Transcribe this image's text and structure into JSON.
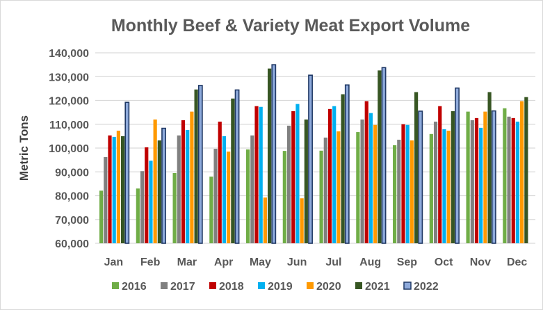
{
  "chart_data": {
    "type": "bar",
    "title": "Monthly Beef & Variety Meat Export Volume",
    "xlabel": "",
    "ylabel": "Metric Tons",
    "ylim": [
      60000,
      140000
    ],
    "yticks": [
      "60,000",
      "70,000",
      "80,000",
      "90,000",
      "100,000",
      "110,000",
      "120,000",
      "130,000",
      "140,000"
    ],
    "grid": true,
    "legend_position": "bottom",
    "categories": [
      "Jan",
      "Feb",
      "Mar",
      "Apr",
      "May",
      "Jun",
      "Jul",
      "Aug",
      "Sep",
      "Oct",
      "Nov",
      "Dec"
    ],
    "series": [
      {
        "name": "2016",
        "color": "#70ad47",
        "values": [
          82100,
          83000,
          89500,
          88000,
          99400,
          98800,
          98900,
          106700,
          101200,
          105900,
          115300,
          116700
        ]
      },
      {
        "name": "2017",
        "color": "#808080",
        "values": [
          96200,
          90300,
          105300,
          99700,
          105300,
          109400,
          104400,
          112000,
          103500,
          111100,
          111700,
          113200
        ]
      },
      {
        "name": "2018",
        "color": "#c00000",
        "values": [
          105300,
          100300,
          111700,
          111100,
          117600,
          115500,
          116400,
          119700,
          110000,
          117600,
          112600,
          112600
        ]
      },
      {
        "name": "2019",
        "color": "#00b0f0",
        "values": [
          104700,
          94700,
          107600,
          105000,
          117300,
          118500,
          117600,
          114700,
          109700,
          107900,
          108500,
          111100
        ]
      },
      {
        "name": "2020",
        "color": "#ff9900",
        "values": [
          107300,
          112000,
          115300,
          98500,
          79200,
          78900,
          107000,
          109700,
          103200,
          107300,
          115300,
          119700
        ]
      },
      {
        "name": "2021",
        "color": "#375623",
        "values": [
          105000,
          103200,
          124600,
          120800,
          133400,
          112000,
          122600,
          132600,
          123500,
          115500,
          123500,
          121400
        ]
      },
      {
        "name": "2022",
        "color": "#8eaadb",
        "outline": "#1f3864",
        "values": [
          119200,
          108300,
          126300,
          124400,
          135000,
          130600,
          126500,
          133800,
          115500,
          125200,
          115600,
          null
        ]
      }
    ]
  }
}
